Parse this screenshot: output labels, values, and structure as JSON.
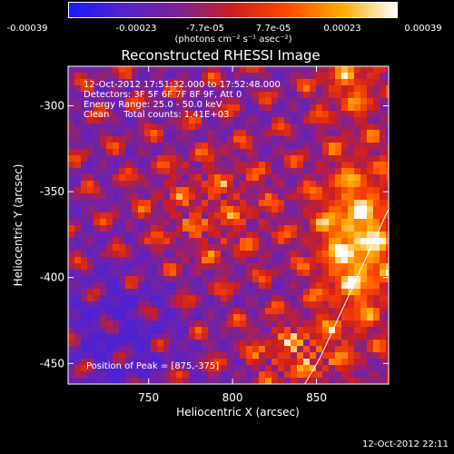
{
  "chart_data": {
    "type": "heatmap",
    "title": "Reconstructed RHESSI Image",
    "xlabel": "Heliocentric X (arcsec)",
    "ylabel": "Heliocentric Y (arcsec)",
    "xlim": [
      702,
      893
    ],
    "ylim": [
      -462,
      -277
    ],
    "x_ticks": [
      750,
      800,
      850
    ],
    "y_ticks": [
      -300,
      -350,
      -400,
      -450
    ],
    "colorbar": {
      "ticks": [
        "-0.00039",
        "-0.00023",
        "-7.7e-05",
        "7.7e-05",
        "0.00023",
        "0.00039"
      ],
      "tick_values": [
        -0.00039,
        -0.00023,
        -7.7e-05,
        7.7e-05,
        0.00023,
        0.00039
      ],
      "units": "(photons cm⁻² s⁻¹ asec⁻²)",
      "colors": [
        "#1a1aff",
        "#5522cc",
        "#7a2299",
        "#cc1f1f",
        "#ff4a00",
        "#ffaa00",
        "#ffffff"
      ]
    },
    "annotations": {
      "time": "12-Oct-2012 17:51:32.000 to 17:52:48.000",
      "detectors": "Detectors: 3F 5F 6F 7F 8F 9F, Att 0",
      "energy": "Energy Range: 25.0 - 50.0 keV",
      "method": "Clean     Total counts: 1.41E+03",
      "peak": "Position of Peak = [875,-375]"
    },
    "peak": {
      "x": 875,
      "y": -375
    },
    "limb_line": [
      [
        843,
        -462
      ],
      [
        852,
        -447
      ],
      [
        893,
        -360
      ]
    ]
  },
  "footer": {
    "timestamp": "12-Oct-2012 22:11"
  }
}
